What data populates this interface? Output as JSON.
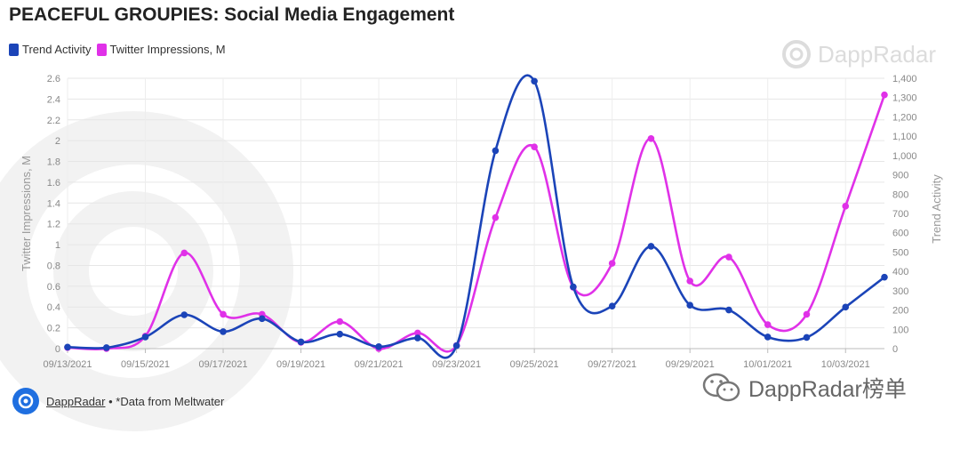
{
  "title": "PEACEFUL GROUPIES: Social Media Engagement",
  "legend": [
    {
      "label": "Trend Activity",
      "color": "#1b44b8"
    },
    {
      "label": "Twitter Impressions, M",
      "color": "#e031e8"
    }
  ],
  "watermark": {
    "brand": "DappRadar",
    "icon": "dappradar-logo-icon"
  },
  "footer": {
    "source_link": "DappRadar",
    "source_note": " • *Data from Meltwater",
    "icon": "dappradar-logo-icon"
  },
  "wechat": {
    "text": "DappRadar榜单",
    "icon": "wechat-icon"
  },
  "chart_data": {
    "type": "line",
    "title": "PEACEFUL GROUPIES: Social Media Engagement",
    "x": [
      "09/13/2021",
      "09/14/2021",
      "09/15/2021",
      "09/16/2021",
      "09/17/2021",
      "09/18/2021",
      "09/19/2021",
      "09/20/2021",
      "09/21/2021",
      "09/22/2021",
      "09/23/2021",
      "09/24/2021",
      "09/25/2021",
      "09/26/2021",
      "09/27/2021",
      "09/28/2021",
      "09/29/2021",
      "09/30/2021",
      "10/01/2021",
      "10/02/2021",
      "10/03/2021",
      "10/04/2021"
    ],
    "xtick_labels": [
      "09/13/2021",
      "09/15/2021",
      "09/17/2021",
      "09/19/2021",
      "09/21/2021",
      "09/23/2021",
      "09/25/2021",
      "09/27/2021",
      "09/29/2021",
      "10/01/2021",
      "10/03/2021"
    ],
    "ylabel_left": "Twitter Impressions, M",
    "ylabel_right": "Trend Activity",
    "ylim_left": [
      0,
      2.6
    ],
    "ylim_right": [
      0,
      1400
    ],
    "yticks_left": [
      "0",
      "0.2",
      "0.4",
      "0.6",
      "0.8",
      "1",
      "1.2",
      "1.4",
      "1.6",
      "1.8",
      "2",
      "2.2",
      "2.4",
      "2.6"
    ],
    "yticks_right": [
      "0",
      "100",
      "200",
      "300",
      "400",
      "500",
      "600",
      "700",
      "800",
      "900",
      "1,000",
      "1,100",
      "1,200",
      "1,300",
      "1,400"
    ],
    "grid": true,
    "legend_position": "top-left",
    "series": [
      {
        "name": "Trend Activity",
        "axis": "right",
        "color": "#1b44b8",
        "values": [
          8,
          5,
          60,
          175,
          88,
          155,
          35,
          75,
          10,
          55,
          15,
          1025,
          1385,
          320,
          220,
          530,
          225,
          200,
          60,
          58,
          215,
          370
        ]
      },
      {
        "name": "Twitter Impressions, M",
        "axis": "left",
        "color": "#e031e8",
        "values": [
          0.01,
          0.0,
          0.12,
          0.92,
          0.33,
          0.33,
          0.06,
          0.26,
          0.0,
          0.15,
          0.03,
          1.26,
          1.94,
          0.59,
          0.82,
          2.02,
          0.65,
          0.88,
          0.23,
          0.33,
          1.37,
          2.44
        ]
      }
    ]
  }
}
